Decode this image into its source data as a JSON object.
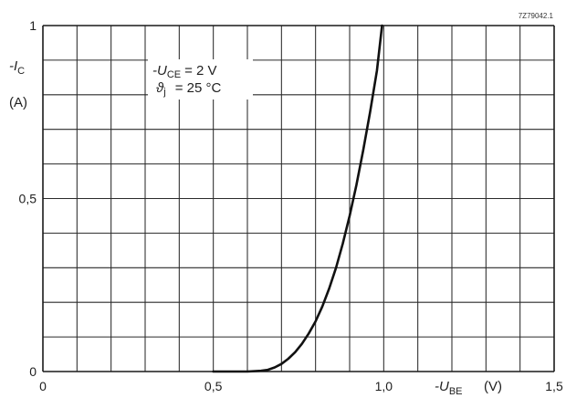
{
  "chart_data": {
    "type": "line",
    "reference": "7Z79042.1",
    "xlabel_sym": "-U",
    "xlabel_sub": "BE",
    "xlabel_unit": "(V)",
    "ylabel_sym": "-I",
    "ylabel_sub": "C",
    "ylabel_unit": "(A)",
    "conditions": [
      {
        "sym": "-U",
        "sub": "CE",
        "val": "= 2 V"
      },
      {
        "sym": "ϑ",
        "sub": "j",
        "val": "= 25 °C"
      }
    ],
    "x_ticks": [
      {
        "value": 0,
        "label": "0"
      },
      {
        "value": 0.5,
        "label": "0,5"
      },
      {
        "value": 1.0,
        "label": "1,0"
      },
      {
        "value": 1.5,
        "label": "1,5"
      }
    ],
    "y_ticks": [
      {
        "value": 0,
        "label": "0"
      },
      {
        "value": 0.5,
        "label": "0,5"
      },
      {
        "value": 1,
        "label": "1"
      }
    ],
    "xlim": [
      0,
      1.5
    ],
    "ylim": [
      0,
      1
    ],
    "grid": true,
    "x_divisions": 15,
    "y_divisions": 10,
    "series": [
      {
        "x": [
          0.5,
          0.6,
          0.64,
          0.66,
          0.68,
          0.7,
          0.72,
          0.74,
          0.76,
          0.78,
          0.8,
          0.82,
          0.84,
          0.86,
          0.88,
          0.9,
          0.92,
          0.94,
          0.96,
          0.98,
          0.995
        ],
        "y": [
          0,
          0,
          0.002,
          0.005,
          0.012,
          0.022,
          0.037,
          0.056,
          0.08,
          0.11,
          0.145,
          0.188,
          0.24,
          0.3,
          0.37,
          0.45,
          0.54,
          0.64,
          0.75,
          0.87,
          1.0
        ]
      }
    ]
  }
}
